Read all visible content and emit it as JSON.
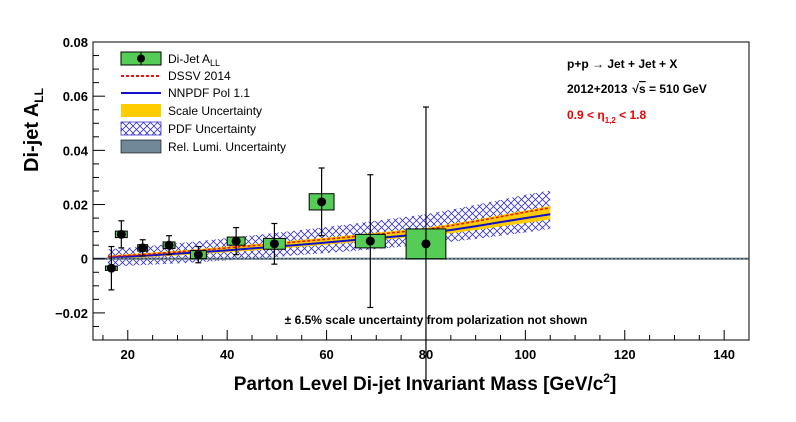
{
  "chart_data": {
    "type": "scatter",
    "ylabel_main": "Di-jet A",
    "ylabel_sub": "LL",
    "xlabel_main": "Parton Level Di-jet Invariant Mass [GeV/c",
    "xlabel_sup": "2",
    "xlabel_end": "]",
    "xlim": [
      13,
      145
    ],
    "ylim": [
      -0.03,
      0.08
    ],
    "xticks": [
      "20",
      "40",
      "60",
      "80",
      "100",
      "120",
      "140"
    ],
    "yticks": [
      "−0.02",
      "0",
      "0.02",
      "0.04",
      "0.06",
      "0.08"
    ],
    "legend": {
      "placement": "top-left",
      "entries": [
        {
          "key": "data",
          "label": "Di-Jet A",
          "sub": "LL",
          "color": "#55cc55"
        },
        {
          "key": "dssv",
          "label": "DSSV 2014",
          "color": "#ee1111"
        },
        {
          "key": "nnpdf",
          "label": "NNPDF Pol 1.1",
          "color": "#1111cc"
        },
        {
          "key": "scale",
          "label": "Scale Uncertainty",
          "color": "#ffcc00"
        },
        {
          "key": "pdf",
          "label": "PDF Uncertainty",
          "color": "#3333cc"
        },
        {
          "key": "lumi",
          "label": "Rel. Lumi. Uncertainty",
          "color": "#708898"
        }
      ]
    },
    "annotations": {
      "line1": "p+p → Jet + Jet + X",
      "line2_prefix": "2012+2013",
      "line2_suffix": " = 510 GeV",
      "sqrt_s": "s",
      "line3_a": "0.9 < η",
      "line3_sub": "1,2",
      "line3_b": " < 1.8",
      "note": "± 6.5% scale uncertainty from polarization not shown",
      "line3_color": "#ee0000"
    },
    "data_points": [
      {
        "x": 16.7,
        "y": -0.0035,
        "stat": 0.008,
        "syst": 0.0008,
        "xw": 1.2
      },
      {
        "x": 18.7,
        "y": 0.009,
        "stat": 0.005,
        "syst": 0.0012,
        "xw": 1.2
      },
      {
        "x": 23.0,
        "y": 0.004,
        "stat": 0.003,
        "syst": 0.0012,
        "xw": 1.0
      },
      {
        "x": 28.3,
        "y": 0.005,
        "stat": 0.0035,
        "syst": 0.0012,
        "xw": 1.2
      },
      {
        "x": 34.2,
        "y": 0.0015,
        "stat": 0.003,
        "syst": 0.0015,
        "xw": 1.6
      },
      {
        "x": 41.8,
        "y": 0.0065,
        "stat": 0.005,
        "syst": 0.0015,
        "xw": 1.8
      },
      {
        "x": 49.5,
        "y": 0.0055,
        "stat": 0.0075,
        "syst": 0.002,
        "xw": 2.2
      },
      {
        "x": 59.0,
        "y": 0.021,
        "stat": 0.0125,
        "syst": 0.003,
        "xw": 2.5
      },
      {
        "x": 68.8,
        "y": 0.0065,
        "stat": 0.0245,
        "syst": 0.0025,
        "xw": 3.0
      },
      {
        "x": 80.0,
        "y": 0.0055,
        "stat": 0.0505,
        "syst": 0.0055,
        "xw": 4.0
      }
    ],
    "theory": {
      "x": [
        16,
        20,
        25,
        30,
        35,
        40,
        45,
        50,
        55,
        60,
        65,
        70,
        75,
        80,
        85,
        90,
        95,
        100,
        105
      ],
      "dssv": [
        0.0008,
        0.0012,
        0.0018,
        0.0025,
        0.0032,
        0.004,
        0.0048,
        0.0056,
        0.0064,
        0.0072,
        0.0081,
        0.009,
        0.0099,
        0.0108,
        0.0122,
        0.0138,
        0.0155,
        0.0172,
        0.0188
      ],
      "nnpdf": [
        0.0004,
        0.0008,
        0.0013,
        0.0019,
        0.0025,
        0.0031,
        0.0038,
        0.0045,
        0.0052,
        0.006,
        0.0068,
        0.0076,
        0.0084,
        0.0093,
        0.0106,
        0.012,
        0.0135,
        0.015,
        0.0164
      ],
      "scale_lo": [
        -0.0002,
        0.0002,
        0.0007,
        0.0012,
        0.0018,
        0.0024,
        0.003,
        0.0037,
        0.0044,
        0.0052,
        0.006,
        0.0068,
        0.0076,
        0.0083,
        0.0094,
        0.0106,
        0.0119,
        0.0132,
        0.0145
      ],
      "scale_hi": [
        0.0012,
        0.0017,
        0.0023,
        0.003,
        0.0037,
        0.0045,
        0.0053,
        0.0061,
        0.007,
        0.0078,
        0.0087,
        0.0096,
        0.0105,
        0.0114,
        0.0128,
        0.0144,
        0.0161,
        0.0178,
        0.0195
      ],
      "pdf_lo": [
        -0.0028,
        -0.0026,
        -0.0022,
        -0.0017,
        -0.0012,
        -0.0006,
        0.0,
        0.0007,
        0.0014,
        0.0021,
        0.0028,
        0.0036,
        0.0044,
        0.0052,
        0.0062,
        0.0073,
        0.0085,
        0.0097,
        0.011
      ],
      "pdf_hi": [
        0.0035,
        0.004,
        0.0048,
        0.0057,
        0.0066,
        0.0076,
        0.0086,
        0.0096,
        0.0106,
        0.0117,
        0.0128,
        0.014,
        0.0152,
        0.0164,
        0.0181,
        0.0199,
        0.0217,
        0.0236,
        0.0252
      ]
    },
    "lumi_band": 0.0004
  }
}
